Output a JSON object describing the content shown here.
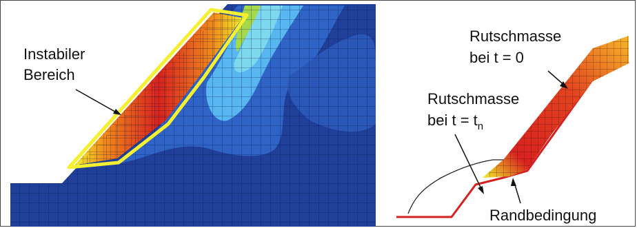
{
  "left_panel": {
    "label_line1": "Instabiler",
    "label_line2": "Bereich"
  },
  "right_panel": {
    "mass_t0_line1": "Rutschmasse",
    "mass_t0_line2": "bei t = 0",
    "mass_tn_line1": "Rutschmasse",
    "mass_tn_line2_prefix": "bei t = t",
    "mass_tn_subscript": "n",
    "boundary_label": "Randbedingung"
  },
  "colors": {
    "deep_blue": "#1f3f98",
    "mid_blue": "#2f63c6",
    "light_blue": "#58b6f0",
    "cyan": "#7fd9ee",
    "green": "#a6d94a",
    "yellow": "#f2ef2a",
    "orange": "#f08a1c",
    "red": "#d8221f",
    "highlight_yellow": "#f5f031",
    "boundary_red": "#d62020"
  }
}
